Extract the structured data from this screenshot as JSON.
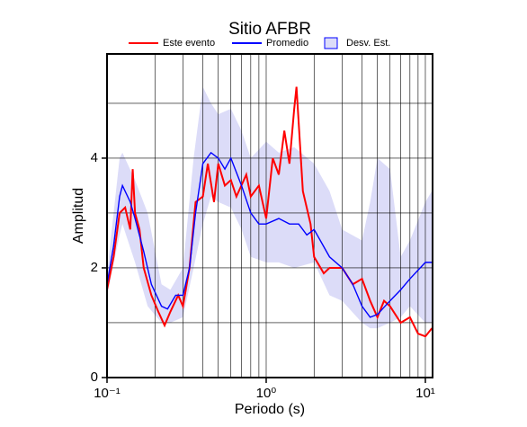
{
  "chart_data": {
    "type": "line",
    "title": "Sitio AFBR",
    "x_label": "Periodo (s)",
    "y_label": "Amplitud",
    "x_scale": "log",
    "xlim": [
      0.1,
      11.1
    ],
    "ylim": [
      0,
      5.9
    ],
    "xticks": [
      {
        "value": 0.1,
        "label": "10⁻¹"
      },
      {
        "value": 1,
        "label": "10⁰"
      },
      {
        "value": 10,
        "label": "10¹"
      }
    ],
    "yticks": [
      0,
      2,
      4
    ],
    "xgrid": [
      0.2,
      0.3,
      0.4,
      0.5,
      0.6,
      0.7,
      0.8,
      0.9,
      1,
      2,
      3,
      4,
      5,
      6,
      7,
      8,
      9,
      10
    ],
    "ygrid": [
      1,
      2,
      3,
      4,
      5
    ],
    "legend": "top",
    "series": [
      {
        "name": "Este evento",
        "color": "#ff0000",
        "x": [
          0.1,
          0.11,
          0.12,
          0.13,
          0.14,
          0.145,
          0.15,
          0.16,
          0.17,
          0.19,
          0.21,
          0.23,
          0.25,
          0.28,
          0.3,
          0.33,
          0.36,
          0.4,
          0.43,
          0.47,
          0.5,
          0.55,
          0.6,
          0.65,
          0.75,
          0.8,
          0.9,
          1.0,
          1.1,
          1.2,
          1.3,
          1.4,
          1.5,
          1.55,
          1.7,
          1.9,
          2.0,
          2.3,
          2.5,
          3.0,
          3.5,
          4.0,
          4.5,
          5.0,
          5.5,
          6.0,
          7.0,
          8.0,
          9.0,
          10,
          11
        ],
        "values": [
          1.6,
          2.2,
          3.0,
          3.1,
          2.7,
          3.8,
          3.0,
          2.7,
          2.0,
          1.5,
          1.2,
          0.95,
          1.2,
          1.5,
          1.3,
          2.0,
          3.2,
          3.3,
          3.9,
          3.2,
          3.9,
          3.5,
          3.6,
          3.3,
          3.7,
          3.3,
          3.5,
          2.9,
          4.0,
          3.7,
          4.5,
          3.9,
          4.9,
          5.3,
          3.4,
          2.8,
          2.2,
          1.9,
          2.0,
          2.0,
          1.7,
          1.8,
          1.4,
          1.1,
          1.4,
          1.3,
          1.0,
          1.1,
          0.8,
          0.75,
          0.9
        ]
      },
      {
        "name": "Promedio",
        "color": "#0000ff",
        "x": [
          0.1,
          0.11,
          0.12,
          0.125,
          0.14,
          0.15,
          0.17,
          0.19,
          0.22,
          0.24,
          0.27,
          0.3,
          0.33,
          0.36,
          0.4,
          0.45,
          0.5,
          0.55,
          0.6,
          0.7,
          0.8,
          0.9,
          1.0,
          1.2,
          1.4,
          1.6,
          1.8,
          2.0,
          2.5,
          3.0,
          3.5,
          4.0,
          4.5,
          5.0,
          6.0,
          7.0,
          8.0,
          10,
          11
        ],
        "values": [
          1.7,
          2.4,
          3.3,
          3.5,
          3.2,
          2.9,
          2.3,
          1.7,
          1.3,
          1.25,
          1.5,
          1.5,
          2.0,
          3.0,
          3.9,
          4.1,
          4.0,
          3.8,
          4.0,
          3.5,
          3.0,
          2.8,
          2.8,
          2.9,
          2.8,
          2.8,
          2.6,
          2.7,
          2.2,
          2.0,
          1.7,
          1.3,
          1.1,
          1.15,
          1.4,
          1.6,
          1.8,
          2.1,
          2.1
        ]
      },
      {
        "name": "Desv. Est.",
        "color": "#dcdcf8",
        "type": "band",
        "x": [
          0.1,
          0.12,
          0.125,
          0.15,
          0.18,
          0.22,
          0.25,
          0.3,
          0.35,
          0.4,
          0.45,
          0.5,
          0.6,
          0.7,
          0.8,
          1.0,
          1.2,
          1.5,
          2.0,
          2.5,
          3.0,
          4.0,
          4.5,
          5.0,
          6.0,
          7.0,
          8.0,
          10,
          11
        ],
        "low": [
          1.5,
          2.6,
          2.8,
          2.1,
          1.3,
          1.0,
          1.0,
          1.1,
          2.0,
          2.8,
          3.3,
          3.2,
          3.1,
          2.7,
          2.2,
          2.1,
          2.1,
          2.0,
          2.1,
          1.5,
          1.4,
          1.0,
          0.9,
          0.9,
          1.0,
          1.1,
          1.3,
          1.0,
          1.0
        ],
        "high": [
          1.9,
          4.0,
          4.1,
          3.6,
          3.0,
          1.7,
          1.6,
          2.0,
          4.0,
          5.3,
          5.0,
          4.8,
          4.9,
          4.5,
          4.0,
          4.3,
          4.1,
          4.2,
          3.9,
          3.4,
          2.7,
          2.5,
          3.2,
          4.0,
          3.8,
          2.2,
          2.5,
          3.2,
          3.4
        ]
      }
    ]
  }
}
